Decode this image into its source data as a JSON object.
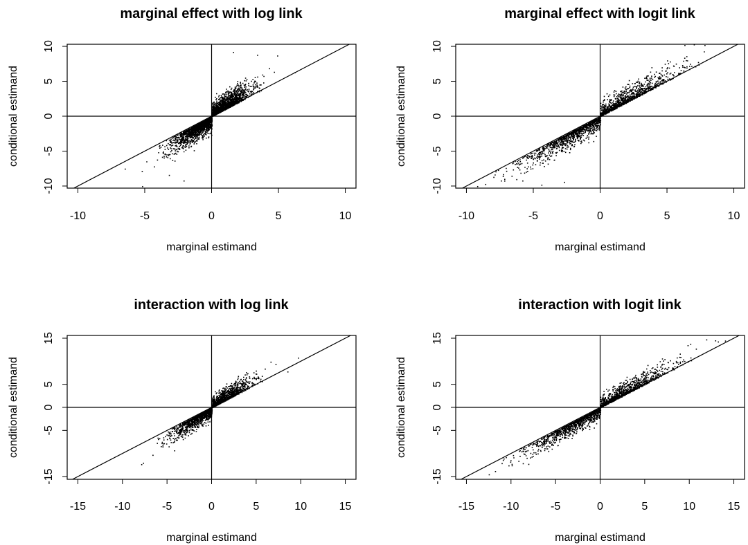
{
  "chart_data": [
    {
      "type": "scatter",
      "title": "marginal effect with log link",
      "xlabel": "marginal estimand",
      "ylabel": "conditional estimand",
      "xlim": [
        -10.8,
        10.8
      ],
      "ylim": [
        -10.3,
        10.3
      ],
      "xticks": [
        -10,
        -5,
        0,
        5,
        10
      ],
      "yticks": [
        -10,
        -5,
        0,
        5,
        10
      ],
      "reference_lines": [
        "x = 0",
        "y = 0",
        "y = x"
      ],
      "point_cloud": {
        "n": 3500,
        "x_center": 0,
        "x_spread": 1.3,
        "slope": 1.35,
        "noise": 0.9,
        "ceiling": 9.3
      },
      "outliers": [
        [
          -5.2,
          -10.0
        ],
        [
          -6.5,
          -7.5
        ],
        [
          6.2,
          6.3
        ],
        [
          1.6,
          9.2
        ],
        [
          3.4,
          8.8
        ],
        [
          4.9,
          8.7
        ],
        [
          -2.1,
          -9.2
        ],
        [
          -3.2,
          -8.4
        ]
      ]
    },
    {
      "type": "scatter",
      "title": "marginal effect with logit link",
      "xlabel": "marginal estimand",
      "ylabel": "conditional estimand",
      "xlim": [
        -10.8,
        10.8
      ],
      "ylim": [
        -10.3,
        10.3
      ],
      "xticks": [
        -10,
        -5,
        0,
        5,
        10
      ],
      "yticks": [
        -10,
        -5,
        0,
        5,
        10
      ],
      "reference_lines": [
        "x = 0",
        "y = 0",
        "y = x"
      ],
      "point_cloud": {
        "n": 6000,
        "x_center": 0,
        "x_spread": 2.6,
        "slope": 1.12,
        "noise": 1.0,
        "ceiling": 10.3
      },
      "outliers": [
        [
          -9.2,
          -10.0
        ],
        [
          -8.6,
          -9.7
        ],
        [
          7.0,
          10.3
        ],
        [
          7.8,
          10.2
        ],
        [
          6.3,
          10.2
        ],
        [
          -2.7,
          -9.4
        ],
        [
          -4.4,
          -9.8
        ]
      ]
    },
    {
      "type": "scatter",
      "title": "interaction with log link",
      "xlabel": "marginal estimand",
      "ylabel": "conditional estimand",
      "xlim": [
        -16.2,
        16.2
      ],
      "ylim": [
        -15.6,
        15.6
      ],
      "xticks": [
        -15,
        -10,
        -5,
        0,
        5,
        10,
        15
      ],
      "yticks": [
        -15,
        -5,
        0,
        5,
        15
      ],
      "reference_lines": [
        "x = 0",
        "y = 0",
        "y = x"
      ],
      "point_cloud": {
        "n": 4500,
        "x_center": 0,
        "x_spread": 2.0,
        "slope": 1.3,
        "noise": 1.1,
        "ceiling": 11
      },
      "outliers": [
        [
          -7.7,
          -12.0
        ],
        [
          -7.9,
          -12.3
        ],
        [
          9.7,
          10.8
        ],
        [
          8.5,
          7.8
        ],
        [
          -4.2,
          -9.3
        ]
      ]
    },
    {
      "type": "scatter",
      "title": "interaction with logit link",
      "xlabel": "marginal estimand",
      "ylabel": "conditional estimand",
      "xlim": [
        -16.2,
        16.2
      ],
      "ylim": [
        -15.6,
        15.6
      ],
      "xticks": [
        -15,
        -10,
        -5,
        0,
        5,
        10,
        15
      ],
      "yticks": [
        -15,
        -5,
        0,
        5,
        15
      ],
      "reference_lines": [
        "x = 0",
        "y = 0",
        "y = x"
      ],
      "point_cloud": {
        "n": 6500,
        "x_center": 0,
        "x_spread": 3.6,
        "slope": 1.12,
        "noise": 1.2,
        "ceiling": 15
      },
      "outliers": [
        [
          -12.5,
          -14.5
        ],
        [
          -11.8,
          -13.8
        ],
        [
          14.0,
          14.5
        ],
        [
          13.2,
          14.3
        ],
        [
          9.8,
          13.5
        ],
        [
          10.1,
          13.8
        ]
      ]
    }
  ]
}
